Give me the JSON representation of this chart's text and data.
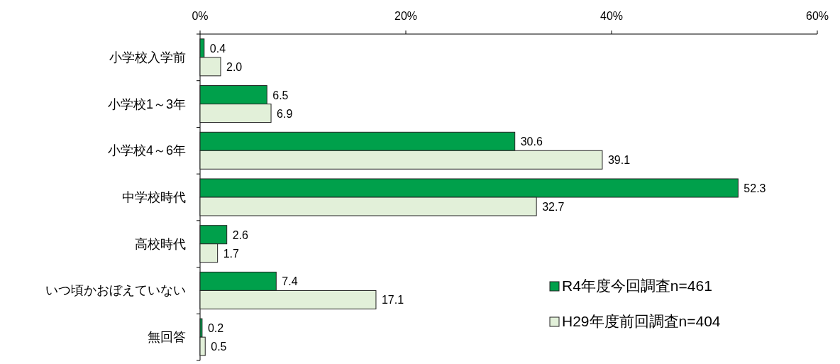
{
  "chart_data": {
    "type": "bar",
    "orientation": "horizontal",
    "categories": [
      "小学校入学前",
      "小学校1～3年",
      "小学校4～6年",
      "中学校時代",
      "高校時代",
      "いつ頃かおぼえていない",
      "無回答"
    ],
    "series": [
      {
        "name": "R4年度今回調査n=461",
        "color": "#00a04b",
        "values": [
          0.4,
          6.5,
          30.6,
          52.3,
          2.6,
          7.4,
          0.2
        ],
        "value_labels": [
          "0.4",
          "6.5",
          "30.6",
          "52.3",
          "2.6",
          "7.4",
          "0.2"
        ]
      },
      {
        "name": "H29年度前回調査n=404",
        "color": "#e2f0d9",
        "values": [
          2.0,
          6.9,
          39.1,
          32.7,
          1.7,
          17.1,
          0.5
        ],
        "value_labels": [
          "2.0",
          "6.9",
          "39.1",
          "32.7",
          "1.7",
          "17.1",
          "0.5"
        ]
      }
    ],
    "xlim": [
      0,
      60
    ],
    "xticks": [
      {
        "value": 0,
        "label": "0%"
      },
      {
        "value": 20,
        "label": "20%"
      },
      {
        "value": 40,
        "label": "40%"
      },
      {
        "value": 60,
        "label": "60%"
      }
    ],
    "legend": "bottom right",
    "grid": false
  }
}
